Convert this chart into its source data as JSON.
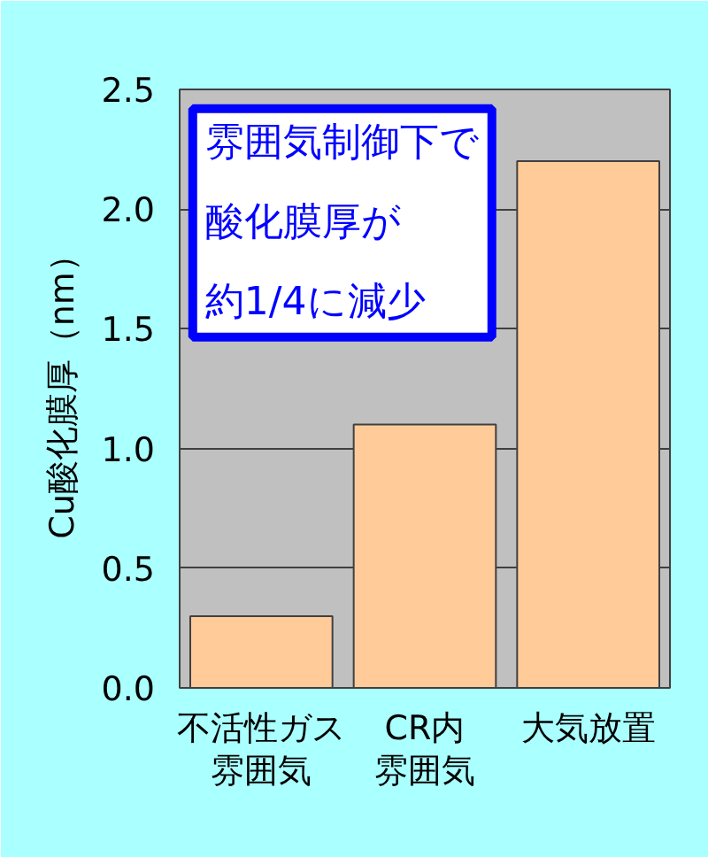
{
  "chart_data": {
    "type": "bar",
    "categories": [
      "不活性ガス雰囲気",
      "CR内雰囲気",
      "大気放置"
    ],
    "values": [
      0.3,
      1.1,
      2.2
    ],
    "color": "#ffcc99",
    "ylabel": "Cu酸化膜厚（nm）",
    "ylim": [
      0,
      2.5
    ],
    "yticks": [
      {
        "value": 0,
        "label": "0.0"
      },
      {
        "value": 0.5,
        "label": "0.5"
      },
      {
        "value": 1,
        "label": "1.0"
      },
      {
        "value": 1.5,
        "label": "1.5"
      },
      {
        "value": 2,
        "label": "2.0"
      },
      {
        "value": 2.5,
        "label": "2.5"
      }
    ],
    "grid": "y",
    "annotations": [
      "雰囲気制御下で酸化膜厚が約1/4に減少"
    ]
  }
}
